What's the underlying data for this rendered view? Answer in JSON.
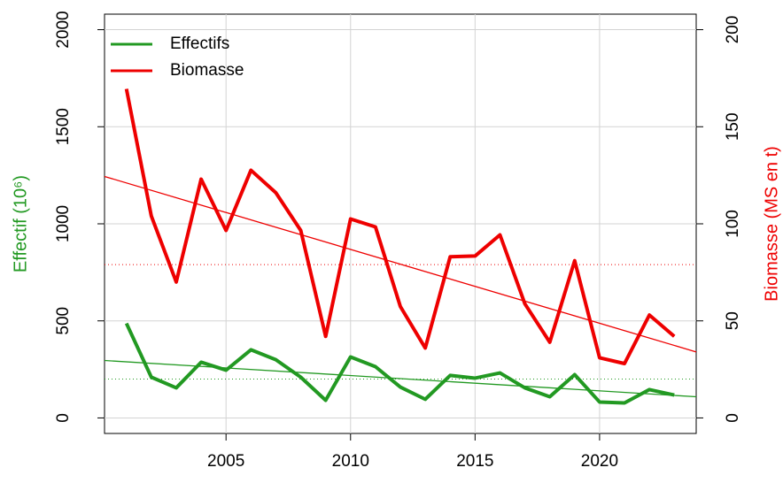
{
  "chart_data": {
    "type": "line",
    "ylabel": "Effectif (10⁶)",
    "y2label": "Biomasse (MS en t)",
    "x": [
      2001,
      2002,
      2003,
      2004,
      2005,
      2006,
      2007,
      2008,
      2009,
      2010,
      2011,
      2012,
      2013,
      2014,
      2015,
      2016,
      2017,
      2018,
      2019,
      2020,
      2021,
      2022,
      2023
    ],
    "series": [
      {
        "name": "Effectifs",
        "color": "#229922",
        "axis": "y",
        "values": [
          487,
          210,
          155,
          287,
          246,
          351,
          300,
          210,
          91,
          314,
          264,
          159,
          96,
          219,
          205,
          232,
          155,
          109,
          223,
          82,
          77,
          146,
          118
        ],
        "trend": [
          296,
          109
        ],
        "mean": 200
      },
      {
        "name": "Biomasse",
        "color": "#ee0000",
        "axis": "y2",
        "values": [
          169.5,
          104,
          70,
          123,
          96.6,
          127.6,
          116,
          96.6,
          42,
          102.5,
          98.4,
          57.4,
          36,
          83,
          83.4,
          94.3,
          58.8,
          39,
          81,
          31,
          28,
          53,
          42
        ],
        "trend": [
          124.4,
          34
        ],
        "mean": 79
      }
    ],
    "xlim": [
      2000.12,
      2023.88
    ],
    "xticks": [
      2005,
      2010,
      2015,
      2020
    ],
    "ylim": [
      -80,
      2080
    ],
    "yticks": [
      0,
      500,
      1000,
      1500,
      2000
    ],
    "y2lim": [
      -8,
      208
    ],
    "y2ticks": [
      0,
      50,
      100,
      150,
      200
    ],
    "grid": true,
    "legend": "topleft"
  }
}
